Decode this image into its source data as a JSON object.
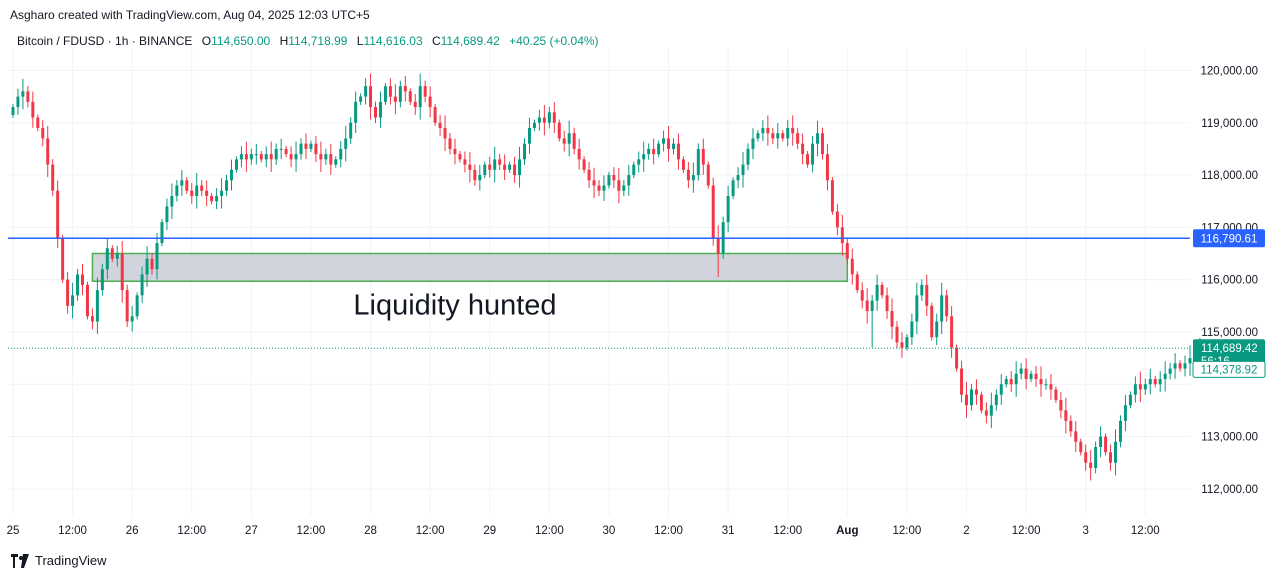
{
  "header": {
    "attribution": "Asgharo created with TradingView.com, Aug 04, 2025 12:03 UTC+5",
    "symbol": "Bitcoin / FDUSD · 1h · BINANCE",
    "open_label": "O",
    "open": "114,650.00",
    "high_label": "H",
    "high": "114,718.99",
    "low_label": "L",
    "low": "114,616.03",
    "close_label": "C",
    "close": "114,689.42",
    "change": "+40.25 (+0.04%)"
  },
  "footer": {
    "brand": "TradingView"
  },
  "colors": {
    "up": "#089981",
    "down": "#f23645",
    "hline": "#2962ff",
    "zone_fill": "#d1d4dc",
    "zone_border": "#4caf50",
    "grid": "#f0f3fa",
    "price_tag": "#089981"
  },
  "chart_data": {
    "type": "candlestick",
    "timeframe": "1h",
    "y_range": [
      111500,
      120200
    ],
    "y_ticks": [
      {
        "value": 112000,
        "label": "112,000.00"
      },
      {
        "value": 113000,
        "label": "113,000.00"
      },
      {
        "value": 114000,
        "label": ""
      },
      {
        "value": 115000,
        "label": "115,000.00"
      },
      {
        "value": 116000,
        "label": "116,000.00"
      },
      {
        "value": 117000,
        "label": "117,000.00"
      },
      {
        "value": 118000,
        "label": "118,000.00"
      },
      {
        "value": 119000,
        "label": "119,000.00"
      },
      {
        "value": 120000,
        "label": "120,000.00"
      }
    ],
    "x_ticks": [
      {
        "hour": 0,
        "label": "25"
      },
      {
        "hour": 12,
        "label": "12:00"
      },
      {
        "hour": 24,
        "label": "26"
      },
      {
        "hour": 36,
        "label": "12:00"
      },
      {
        "hour": 48,
        "label": "27"
      },
      {
        "hour": 60,
        "label": "12:00"
      },
      {
        "hour": 72,
        "label": "28"
      },
      {
        "hour": 84,
        "label": "12:00"
      },
      {
        "hour": 96,
        "label": "29"
      },
      {
        "hour": 108,
        "label": "12:00"
      },
      {
        "hour": 120,
        "label": "30"
      },
      {
        "hour": 132,
        "label": "12:00"
      },
      {
        "hour": 144,
        "label": "31"
      },
      {
        "hour": 156,
        "label": "12:00"
      },
      {
        "hour": 168,
        "label": "Aug",
        "bold": true
      },
      {
        "hour": 180,
        "label": "12:00"
      },
      {
        "hour": 192,
        "label": "2"
      },
      {
        "hour": 204,
        "label": "12:00"
      },
      {
        "hour": 216,
        "label": "3"
      },
      {
        "hour": 228,
        "label": "12:00"
      }
    ],
    "x_range_hours": [
      -1,
      237
    ],
    "closes": [
      119300,
      119500,
      119600,
      119400,
      119100,
      118900,
      118700,
      118200,
      117700,
      116800,
      116000,
      115500,
      115700,
      116100,
      115900,
      115300,
      115200,
      115800,
      116200,
      116600,
      116400,
      116500,
      115800,
      115200,
      115300,
      115700,
      116100,
      116400,
      116200,
      116700,
      117100,
      117400,
      117600,
      117800,
      117900,
      117700,
      117600,
      117800,
      117700,
      117600,
      117500,
      117600,
      117700,
      117900,
      118100,
      118300,
      118400,
      118300,
      118400,
      118400,
      118300,
      118400,
      118300,
      118500,
      118500,
      118400,
      118300,
      118400,
      118600,
      118500,
      118600,
      118400,
      118300,
      118400,
      118200,
      118300,
      118500,
      118700,
      119000,
      119400,
      119500,
      119700,
      119300,
      119100,
      119400,
      119700,
      119500,
      119400,
      119700,
      119600,
      119400,
      119300,
      119700,
      119500,
      119300,
      119000,
      118900,
      118700,
      118500,
      118400,
      118300,
      118200,
      118100,
      117900,
      118000,
      118200,
      118100,
      118300,
      118200,
      118100,
      118200,
      118000,
      118300,
      118600,
      118900,
      119000,
      119100,
      119000,
      119200,
      119000,
      118700,
      118600,
      118800,
      118500,
      118300,
      118100,
      117900,
      117800,
      117700,
      117800,
      118000,
      117900,
      117700,
      117800,
      118000,
      118200,
      118300,
      118400,
      118500,
      118400,
      118600,
      118700,
      118500,
      118600,
      118300,
      118100,
      117900,
      118000,
      118500,
      118200,
      117800,
      116800,
      116500,
      117100,
      117600,
      117900,
      118000,
      118200,
      118500,
      118700,
      118800,
      118900,
      118800,
      118700,
      118800,
      118700,
      118900,
      118800,
      118600,
      118400,
      118200,
      118600,
      118800,
      118400,
      117900,
      117300,
      117000,
      116700,
      116400,
      116100,
      115800,
      115600,
      115400,
      115600,
      115900,
      115700,
      115400,
      115100,
      114800,
      114700,
      114900,
      115200,
      115700,
      115900,
      115500,
      114900,
      115200,
      115700,
      115300,
      114700,
      114300,
      113800,
      113600,
      113900,
      113800,
      113500,
      113400,
      113600,
      113800,
      114000,
      114100,
      114000,
      114200,
      114300,
      114100,
      114200,
      114100,
      114000,
      114000,
      113900,
      113700,
      113500,
      113300,
      113100,
      112900,
      112700,
      112500,
      112400,
      112800,
      113000,
      112700,
      112500,
      112900,
      113300,
      113600,
      113800,
      114000,
      113900,
      114000,
      114100,
      114000,
      114100,
      114200,
      114300,
      114400,
      114300,
      114400,
      114500,
      114650,
      114689
    ],
    "horizontal_line": {
      "value": 116790.61,
      "label": "116,790.61"
    },
    "zone": {
      "from_hour": 16,
      "to_hour": 168,
      "top": 116500,
      "bottom": 115970
    },
    "annotation": {
      "text": "Liquidity hunted",
      "hour": 89,
      "value": 115330
    },
    "last_price": {
      "value": 114689.42,
      "label": "114,689.42",
      "countdown": "56:16"
    },
    "secondary_price": {
      "value": 114378.92,
      "label": "114,378.92"
    }
  }
}
